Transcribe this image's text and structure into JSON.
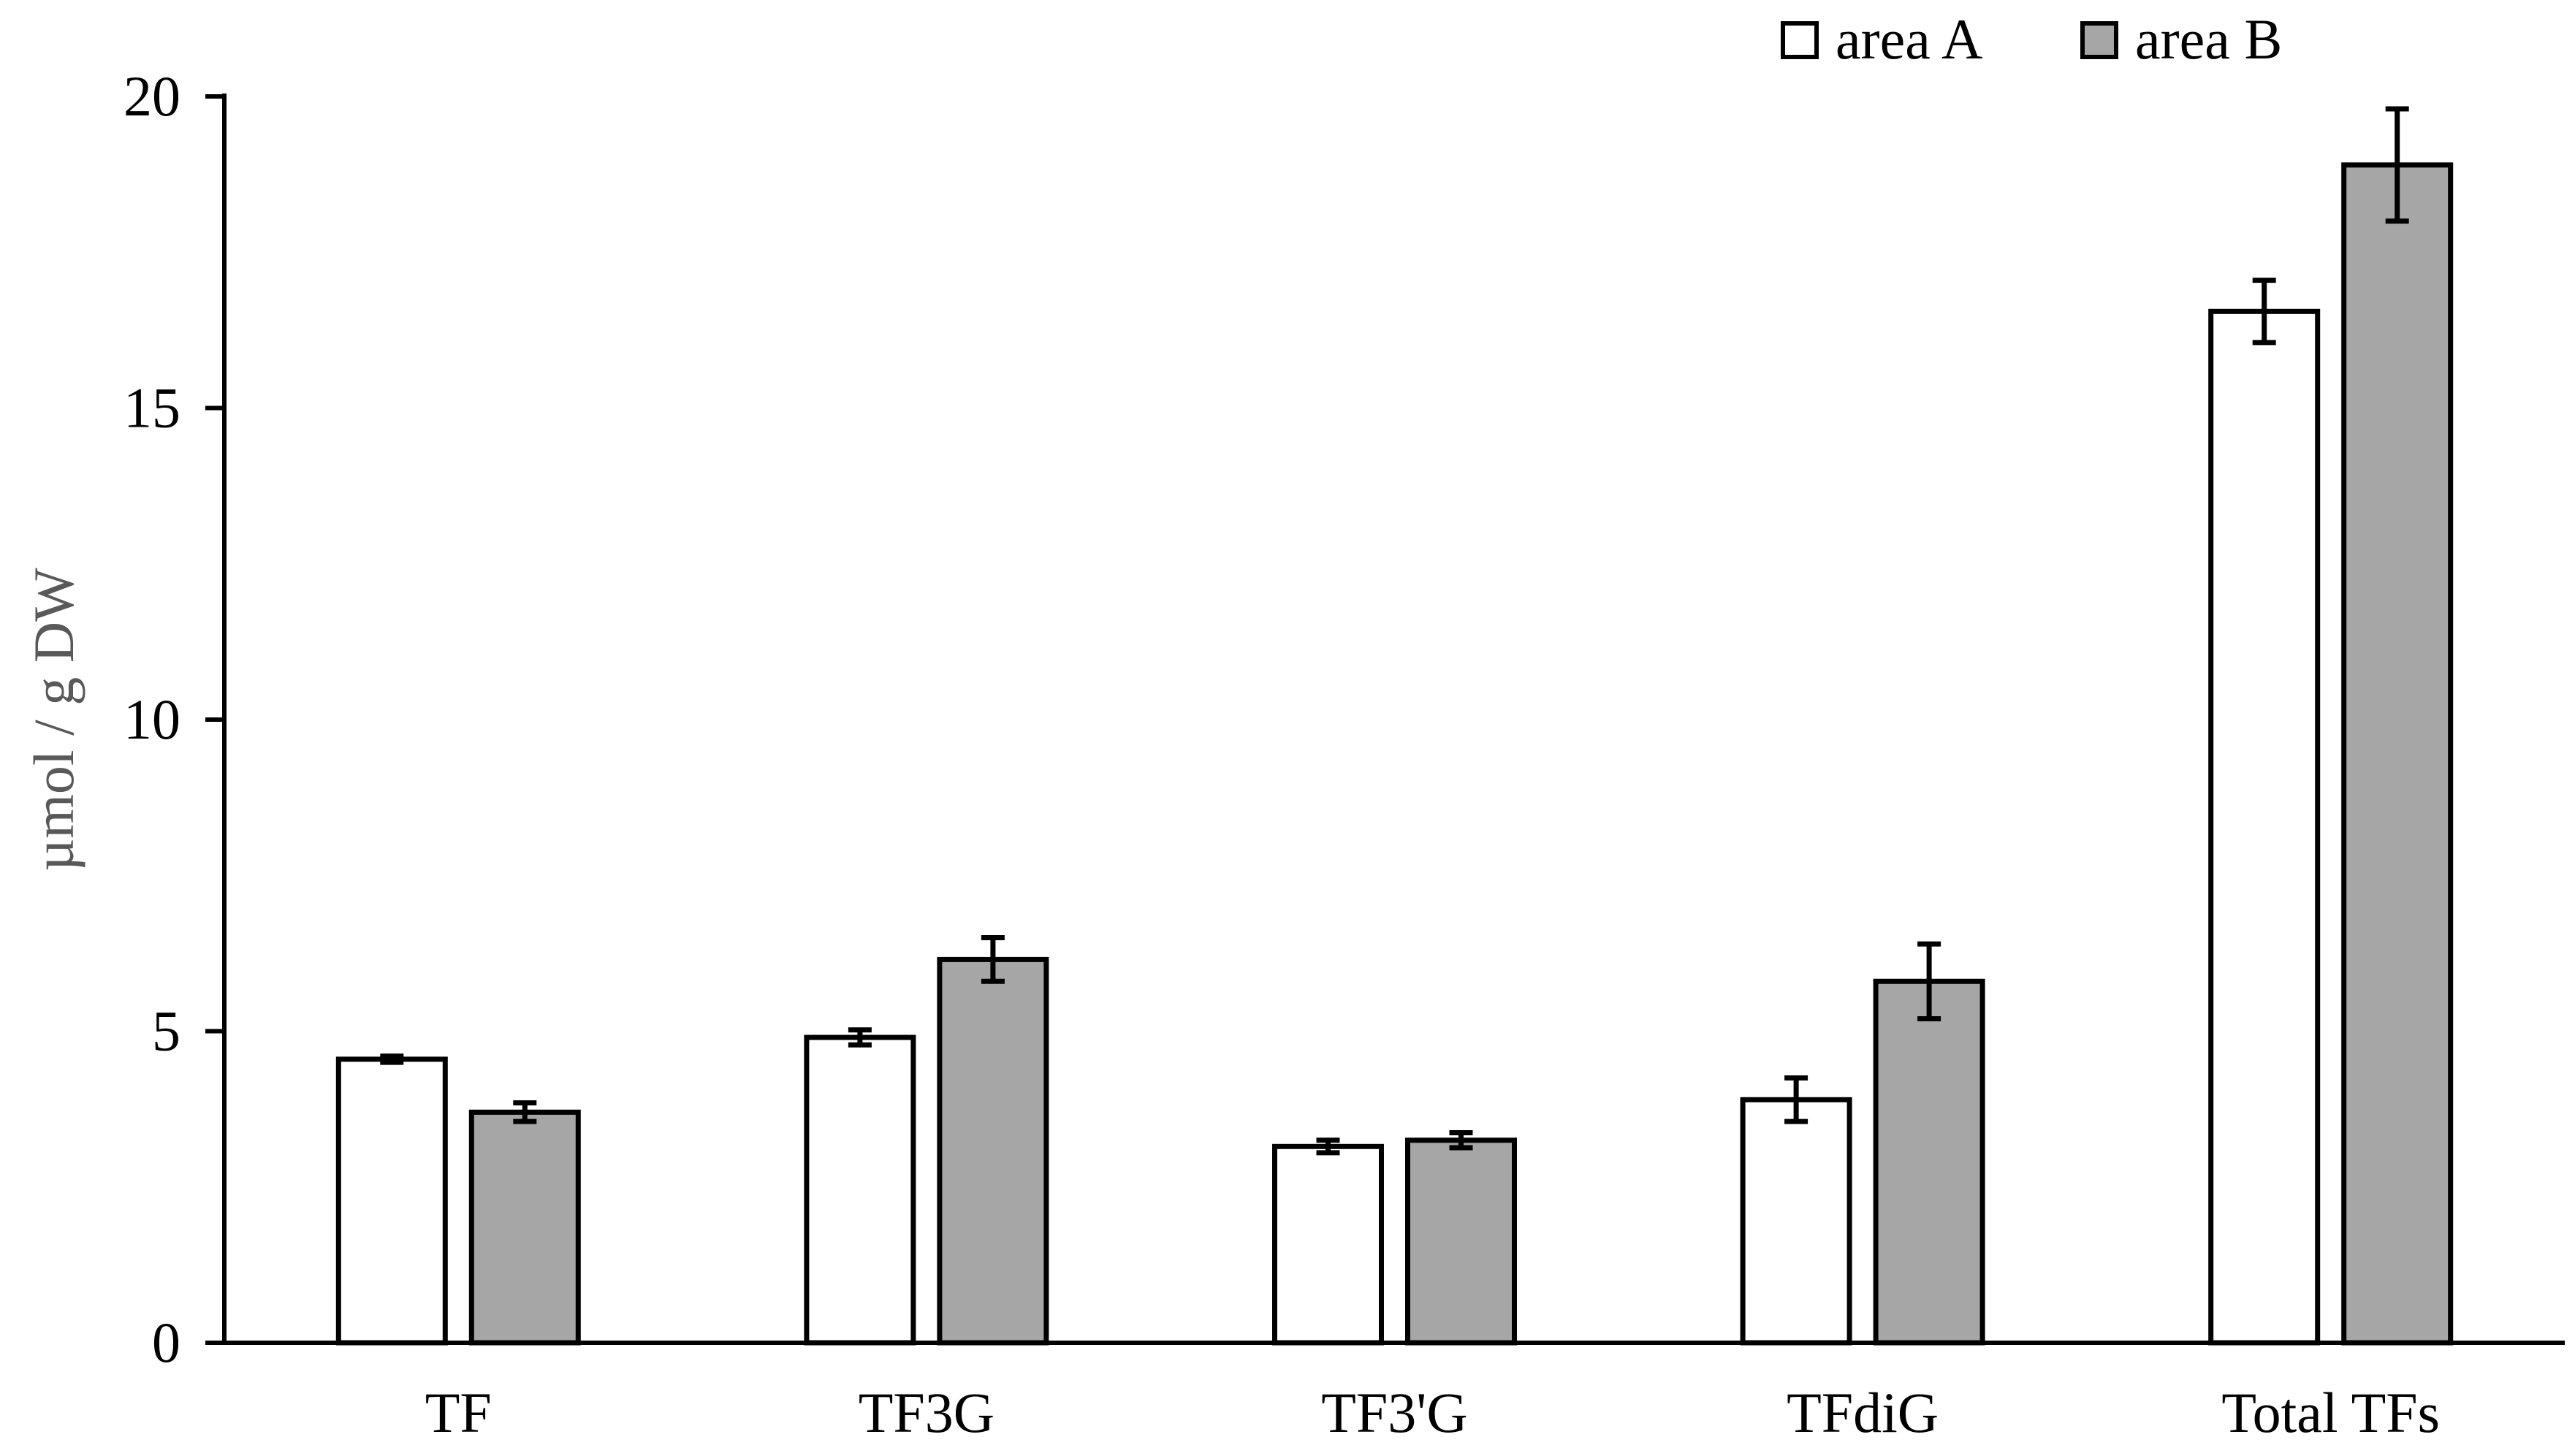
{
  "chart_data": {
    "type": "bar",
    "categories": [
      "TF",
      "TF3G",
      "TF3'G",
      "TFdiG",
      "Total TFs"
    ],
    "series": [
      {
        "name": "area A",
        "values": [
          4.55,
          4.9,
          3.15,
          3.9,
          16.55
        ],
        "errors": [
          0.05,
          0.12,
          0.1,
          0.35,
          0.5
        ],
        "color": "#ffffff"
      },
      {
        "name": "area B",
        "values": [
          3.7,
          6.15,
          3.25,
          5.8,
          18.9
        ],
        "errors": [
          0.15,
          0.35,
          0.12,
          0.6,
          0.9
        ],
        "color": "#a6a6a6"
      }
    ],
    "title": "",
    "xlabel": "",
    "ylabel": "µmol / g DW",
    "ylim": [
      0,
      20
    ],
    "yticks": [
      "0",
      "5",
      "10",
      "15",
      "20"
    ],
    "grid": false,
    "legend": "top-right"
  }
}
